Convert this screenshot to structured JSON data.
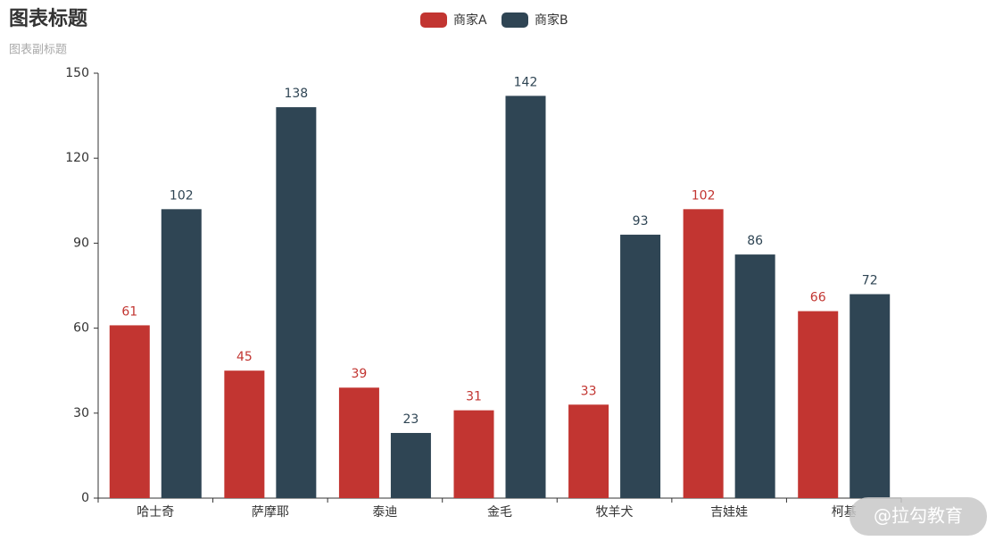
{
  "chart_data": {
    "type": "bar",
    "title": "图表标题",
    "subtitle": "图表副标题",
    "categories": [
      "哈士奇",
      "萨摩耶",
      "泰迪",
      "金毛",
      "牧羊犬",
      "吉娃娃",
      "柯基"
    ],
    "series": [
      {
        "name": "商家A",
        "color": "#c23531",
        "values": [
          61,
          45,
          39,
          31,
          33,
          102,
          66
        ]
      },
      {
        "name": "商家B",
        "color": "#2f4554",
        "values": [
          102,
          138,
          23,
          142,
          93,
          86,
          72
        ]
      }
    ],
    "ylim": [
      0,
      150
    ],
    "yticks": [
      0,
      30,
      60,
      90,
      120,
      150
    ],
    "grid": false,
    "legend": "top",
    "watermark": "@拉勾教育"
  }
}
